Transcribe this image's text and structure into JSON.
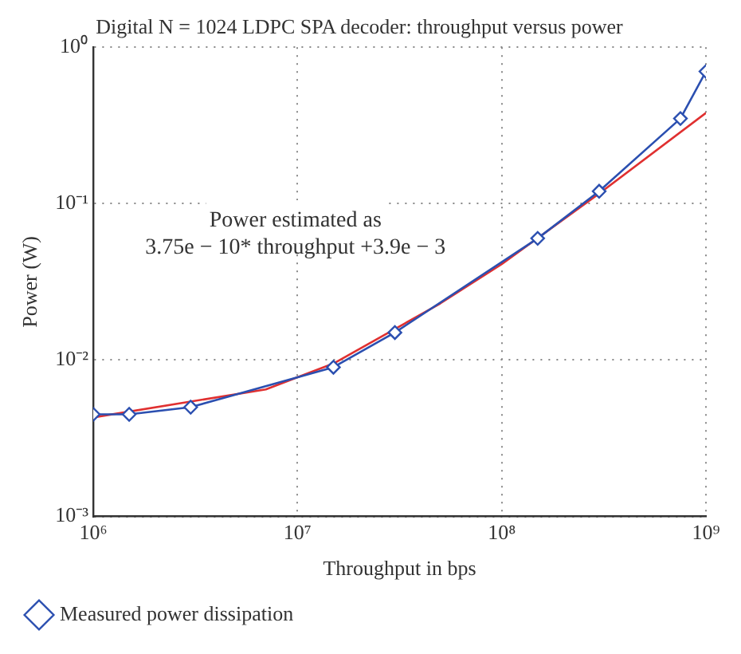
{
  "chart_data": {
    "type": "line",
    "title": "Digital N = 1024 LDPC SPA decoder: throughput versus power",
    "xlabel": "Throughput in bps",
    "ylabel": "Power (W)",
    "log": "xy",
    "grid": true,
    "legend": "bottom",
    "xlim": [
      1000000,
      1000000000
    ],
    "xticks": [
      {
        "value": 1000000,
        "label": "10⁶"
      },
      {
        "value": 10000000,
        "label": "10⁷"
      },
      {
        "value": 100000000,
        "label": "10⁸"
      },
      {
        "value": 1000000000,
        "label": "10⁹"
      }
    ],
    "ylim": [
      0.001,
      1
    ],
    "yticks": [
      {
        "value": 0.001,
        "label": "10⁻³"
      },
      {
        "value": 0.01,
        "label": "10⁻²"
      },
      {
        "value": 0.1,
        "label": "10⁻¹"
      },
      {
        "value": 1,
        "label": "10⁰"
      }
    ],
    "annotations": [
      "Power estimated as",
      "3.75e − 10* throughput +3.9e − 3"
    ],
    "series": [
      {
        "name": "Measured power dissipation",
        "color": "#2b4fb0",
        "marker": "diamond",
        "x": [
          1000000,
          1500000,
          3000000,
          15000000,
          30000000,
          150000000,
          300000000,
          750000000,
          1000000000
        ],
        "values": [
          0.0045,
          0.0045,
          0.005,
          0.009,
          0.015,
          0.06,
          0.12,
          0.35,
          0.7
        ]
      },
      {
        "color": "#e03030",
        "marker": "none",
        "x": [
          1000000,
          7000000,
          15000000,
          50000000,
          100000000,
          300000000,
          1000000000
        ],
        "values": [
          0.0043,
          0.0065,
          0.0095,
          0.023,
          0.041,
          0.116,
          0.38
        ]
      }
    ]
  }
}
